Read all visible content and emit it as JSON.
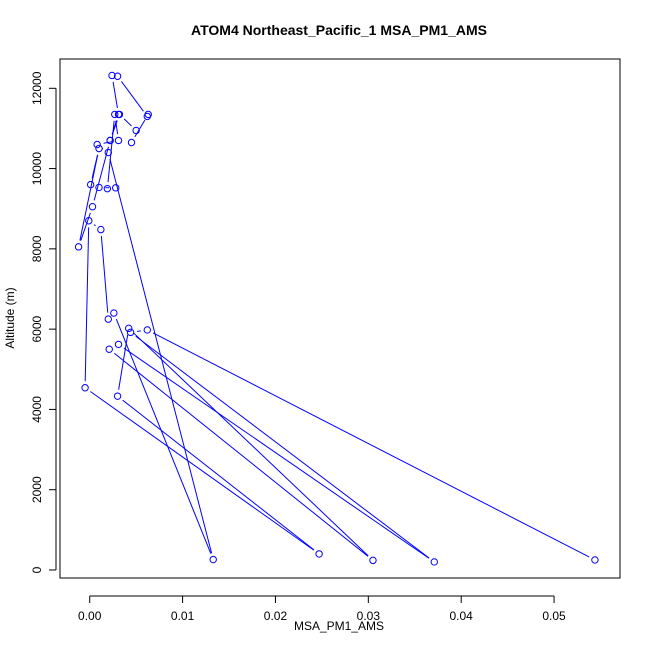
{
  "chart_data": {
    "type": "line",
    "title": "ATOM4 Northeast_Pacific_1 MSA_PM1_AMS",
    "xlabel": "MSA_PM1_AMS",
    "ylabel": "Altitude (m)",
    "xlim": [
      -0.0032,
      0.0571
    ],
    "ylim": [
      -200,
      12730
    ],
    "x_ticks": [
      0.0,
      0.01,
      0.02,
      0.03,
      0.04,
      0.05
    ],
    "x_tick_labels": [
      "0.00",
      "0.01",
      "0.02",
      "0.03",
      "0.04",
      "0.05"
    ],
    "y_ticks": [
      0,
      2000,
      4000,
      6000,
      8000,
      10000,
      12000
    ],
    "y_tick_labels": [
      "0",
      "2000",
      "4000",
      "6000",
      "8000",
      "10000",
      "12000"
    ],
    "grid": false,
    "series_color": "#0000ff",
    "series": [
      {
        "x": [
          0.0544,
          0.0062,
          0.0044,
          0.0371,
          0.0031,
          0.0021,
          0.0305,
          0.0042,
          0.003,
          0.0247,
          -0.0005,
          -0.0001,
          0.0012,
          0.002,
          0.0026,
          0.0133,
          0.002,
          0.0008,
          0.0031,
          0.0027,
          0.0019,
          0.0028,
          0.001,
          0.0001,
          0.001,
          -0.0012,
          0.0003,
          0.0022,
          0.0032,
          0.005,
          0.0045,
          0.0063,
          0.0062,
          0.003,
          0.0024,
          0.0031,
          0.0022
        ],
        "y": [
          250,
          5980,
          5920,
          200,
          5620,
          5500,
          240,
          6020,
          4330,
          400,
          4540,
          8700,
          8480,
          6250,
          6400,
          260,
          10400,
          10600,
          10700,
          11350,
          9500,
          9520,
          9530,
          9600,
          10500,
          8050,
          9050,
          10700,
          11350,
          10950,
          10650,
          11350,
          11300,
          12300,
          12320,
          11350,
          10700
        ]
      }
    ]
  }
}
